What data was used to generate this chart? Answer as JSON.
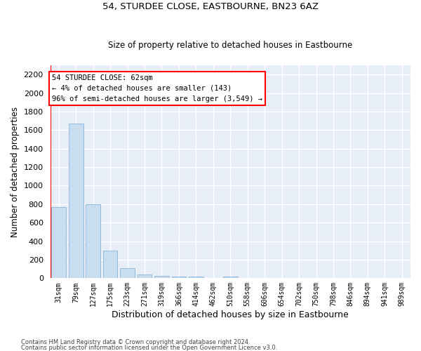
{
  "title": "54, STURDEE CLOSE, EASTBOURNE, BN23 6AZ",
  "subtitle": "Size of property relative to detached houses in Eastbourne",
  "xlabel": "Distribution of detached houses by size in Eastbourne",
  "ylabel": "Number of detached properties",
  "bar_color": "#c9ddf0",
  "bar_edge_color": "#89b4d9",
  "categories": [
    "31sqm",
    "79sqm",
    "127sqm",
    "175sqm",
    "223sqm",
    "271sqm",
    "319sqm",
    "366sqm",
    "414sqm",
    "462sqm",
    "510sqm",
    "558sqm",
    "606sqm",
    "654sqm",
    "702sqm",
    "750sqm",
    "798sqm",
    "846sqm",
    "894sqm",
    "941sqm",
    "989sqm"
  ],
  "values": [
    770,
    1670,
    800,
    300,
    110,
    38,
    28,
    20,
    18,
    0,
    20,
    0,
    0,
    0,
    0,
    0,
    0,
    0,
    0,
    0,
    0
  ],
  "ylim": [
    0,
    2300
  ],
  "yticks": [
    0,
    200,
    400,
    600,
    800,
    1000,
    1200,
    1400,
    1600,
    1800,
    2000,
    2200
  ],
  "annotation_box_text": "54 STURDEE CLOSE: 62sqm\n← 4% of detached houses are smaller (143)\n96% of semi-detached houses are larger (3,549) →",
  "vline_x": -0.5,
  "background_color": "#e8eef8",
  "grid_color": "#ffffff",
  "footer_line1": "Contains HM Land Registry data © Crown copyright and database right 2024.",
  "footer_line2": "Contains public sector information licensed under the Open Government Licence v3.0."
}
